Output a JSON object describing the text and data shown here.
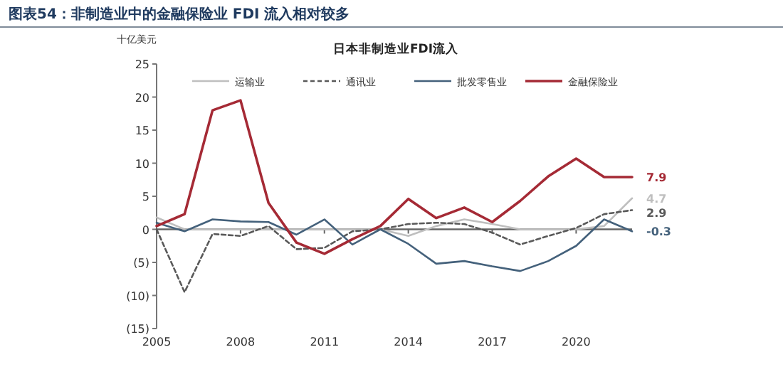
{
  "chart_data": {
    "type": "line",
    "title": "图表54：非制造业中的金融保险业 FDI 流入相对较多",
    "subtitle": "日本非制造业FDI流入",
    "ylabel": "十亿美元",
    "legend": "top",
    "x": [
      2005,
      2006,
      2007,
      2008,
      2009,
      2010,
      2011,
      2012,
      2013,
      2014,
      2015,
      2016,
      2017,
      2018,
      2019,
      2020,
      2021,
      2022
    ],
    "xlim": [
      2005,
      2022
    ],
    "xticks": [
      2005,
      2008,
      2011,
      2014,
      2017,
      2020
    ],
    "ylim": [
      -15,
      25
    ],
    "yticks": [
      {
        "value": -15,
        "label": "(15)"
      },
      {
        "value": -10,
        "label": "(10)"
      },
      {
        "value": -5,
        "label": "(5)"
      },
      0,
      5,
      10,
      15,
      20,
      25
    ],
    "series": [
      {
        "name": "运输业",
        "color": "#bfbfbf",
        "line_style": "solid",
        "values": [
          1.8,
          0,
          0,
          0,
          0,
          0,
          0,
          0,
          0,
          -1,
          0.5,
          1.5,
          0.8,
          0,
          0,
          0,
          0.5,
          4.7
        ],
        "value_labels": [
          null,
          null,
          null,
          null,
          null,
          null,
          null,
          null,
          null,
          null,
          null,
          null,
          null,
          null,
          null,
          null,
          null,
          "4.7"
        ]
      },
      {
        "name": "通讯业",
        "color": "#595959",
        "line_style": "dashed",
        "values": [
          0,
          -9.5,
          -0.7,
          -1,
          0.5,
          -3,
          -2.8,
          -0.3,
          0,
          0.8,
          1,
          0.8,
          -0.5,
          -2.3,
          -1,
          0.2,
          2.3,
          2.9
        ],
        "value_labels": [
          null,
          null,
          null,
          null,
          null,
          null,
          null,
          null,
          null,
          null,
          null,
          null,
          null,
          null,
          null,
          null,
          null,
          "2.9"
        ]
      },
      {
        "name": "批发零售业",
        "color": "#44617b",
        "line_style": "solid",
        "values": [
          1,
          -0.3,
          1.5,
          1.2,
          1.1,
          -0.8,
          1.5,
          -2.3,
          0,
          -2.2,
          -5.2,
          -4.8,
          -5.6,
          -6.3,
          -4.8,
          -2.5,
          1.5,
          -0.3
        ],
        "value_labels": [
          null,
          null,
          null,
          null,
          null,
          null,
          null,
          null,
          null,
          null,
          null,
          null,
          null,
          null,
          null,
          null,
          null,
          "-0.3"
        ]
      },
      {
        "name": "金融保险业",
        "color": "#a52a35",
        "line_style": "solid",
        "values": [
          0.5,
          2.3,
          18,
          19.5,
          4,
          -2,
          -3.7,
          -1.5,
          0.5,
          4.6,
          1.7,
          3.3,
          1.1,
          4.3,
          8,
          10.7,
          7.9,
          7.9
        ],
        "value_labels": [
          null,
          null,
          null,
          null,
          null,
          null,
          null,
          null,
          null,
          null,
          null,
          null,
          null,
          null,
          null,
          null,
          null,
          "7.9"
        ]
      }
    ]
  }
}
